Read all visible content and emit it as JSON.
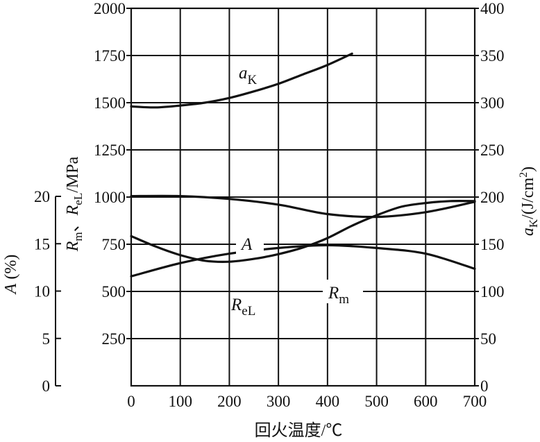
{
  "chart_data": {
    "type": "line",
    "xlabel": "回火温度/℃",
    "xlim": [
      0,
      700
    ],
    "x_ticks": [
      "0",
      "100",
      "200",
      "300",
      "400",
      "500",
      "600",
      "700"
    ],
    "left_axis": {
      "label_main": "R",
      "sub_m": "m",
      "sep": "、",
      "sub_el": "eL",
      "unit": "/MPa",
      "ylim": [
        0,
        2000
      ],
      "ticks": [
        "250",
        "500",
        "750",
        "1000",
        "1250",
        "1500",
        "1750",
        "2000"
      ]
    },
    "a_axis": {
      "label_main": "A",
      "unit": " (%)",
      "ylim": [
        0,
        20
      ],
      "ticks": [
        "0",
        "5",
        "10",
        "15",
        "20"
      ]
    },
    "right_axis": {
      "label_main": "a",
      "sub": "K",
      "unit": "/(J/cm",
      "sup": "2",
      "close": ")",
      "ylim": [
        0,
        400
      ],
      "ticks": [
        "0",
        "50",
        "100",
        "150",
        "200",
        "250",
        "300",
        "350",
        "400"
      ]
    },
    "series": [
      {
        "name": "aK",
        "label_main": "a",
        "label_sub": "K",
        "axis": "right",
        "x": [
          0,
          50,
          100,
          150,
          200,
          250,
          300,
          350,
          400,
          450
        ],
        "y": [
          296,
          295,
          297,
          300,
          305,
          312,
          320,
          330,
          340,
          352
        ]
      },
      {
        "name": "A",
        "label_main": "A",
        "label_sub": "",
        "axis": "A",
        "x": [
          0,
          50,
          100,
          150,
          200,
          250,
          300,
          350,
          400,
          450,
          500,
          550,
          600,
          650,
          700
        ],
        "y": [
          15.8,
          14.7,
          13.8,
          13.2,
          13.1,
          13.4,
          13.9,
          14.6,
          15.6,
          16.9,
          18.0,
          18.9,
          19.3,
          19.5,
          19.5
        ]
      },
      {
        "name": "Rm",
        "label_main": "R",
        "label_sub": "m",
        "axis": "left",
        "x": [
          0,
          100,
          200,
          300,
          400,
          500,
          600,
          700
        ],
        "y": [
          1005,
          1005,
          990,
          960,
          910,
          895,
          920,
          975
        ]
      },
      {
        "name": "ReL",
        "label_main": "R",
        "label_sub": "eL",
        "axis": "left",
        "x": [
          0,
          100,
          200,
          300,
          400,
          500,
          600,
          700
        ],
        "y": [
          580,
          650,
          700,
          730,
          745,
          730,
          700,
          620
        ]
      }
    ]
  }
}
